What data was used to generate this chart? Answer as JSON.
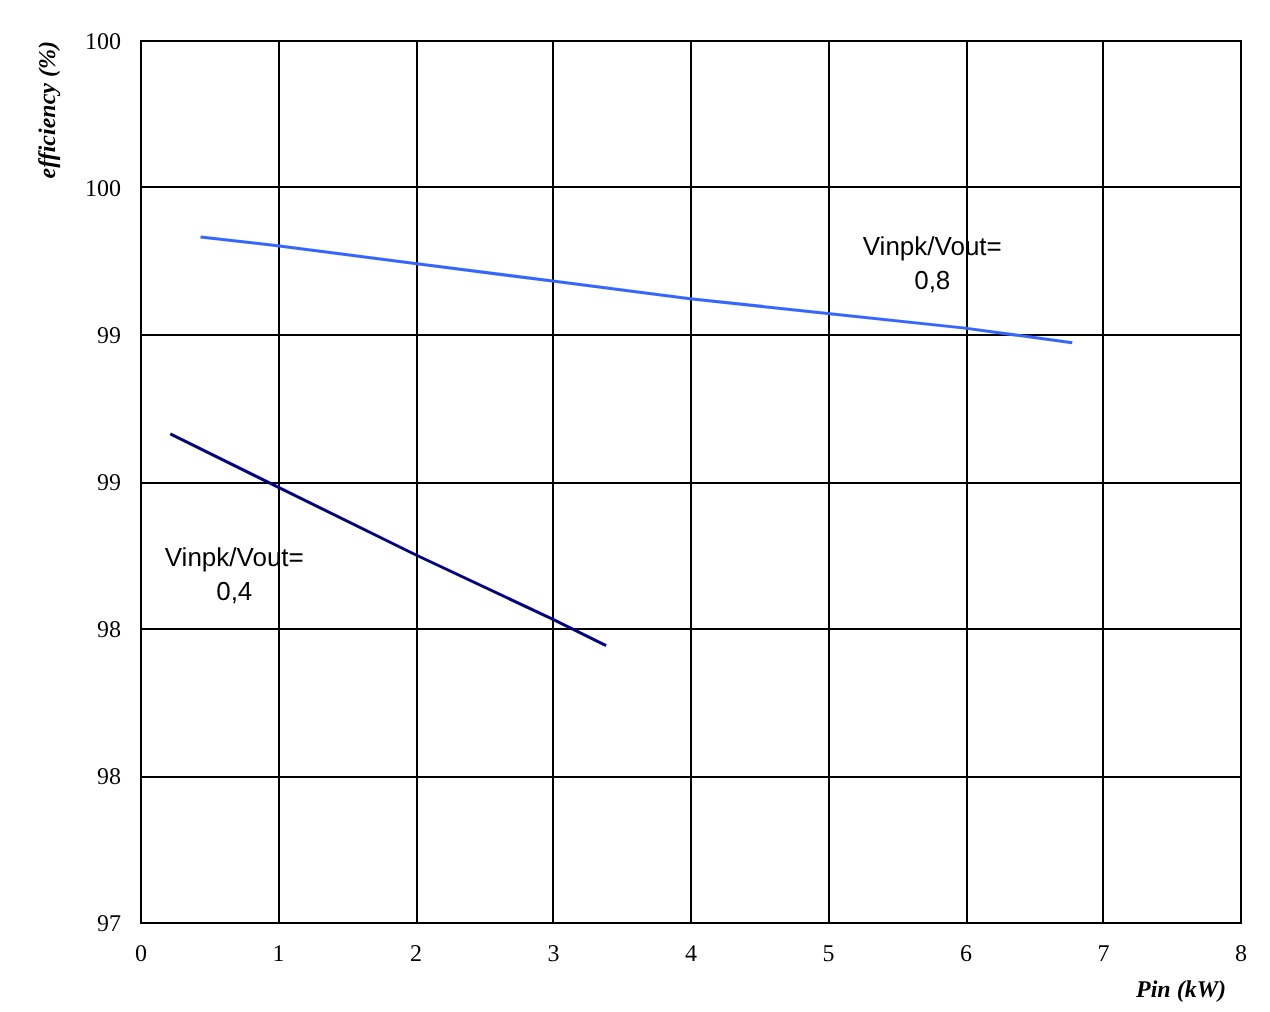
{
  "chart_data": {
    "type": "line",
    "xlabel": "Pin (kW)",
    "ylabel": "efficiency (%)",
    "xlim": [
      0,
      8
    ],
    "xticks": [
      0,
      1,
      2,
      3,
      4,
      5,
      6,
      7,
      8
    ],
    "ylim": [
      97,
      100
    ],
    "yticks": [
      97,
      {
        "value": 97.5,
        "label": "98"
      },
      98,
      {
        "value": 98.5,
        "label": "99"
      },
      99,
      {
        "value": 99.5,
        "label": "100"
      },
      100
    ],
    "grid": true,
    "legend": false,
    "line_style": "solid",
    "marker": "none",
    "series": [
      {
        "name": "Vinpk/Vout= 0,8",
        "color": "#3366ff",
        "x": [
          0.44,
          1,
          2,
          3,
          4,
          5,
          6,
          6.78
        ],
        "values": [
          99.33,
          99.3,
          99.24,
          99.18,
          99.12,
          99.07,
          99.02,
          98.97
        ]
      },
      {
        "name": "Vinpk/Vout= 0,4",
        "color": "#000080",
        "x": [
          0.22,
          1,
          2,
          3,
          3.39
        ],
        "values": [
          98.66,
          98.48,
          98.25,
          98.03,
          97.94
        ]
      }
    ]
  }
}
